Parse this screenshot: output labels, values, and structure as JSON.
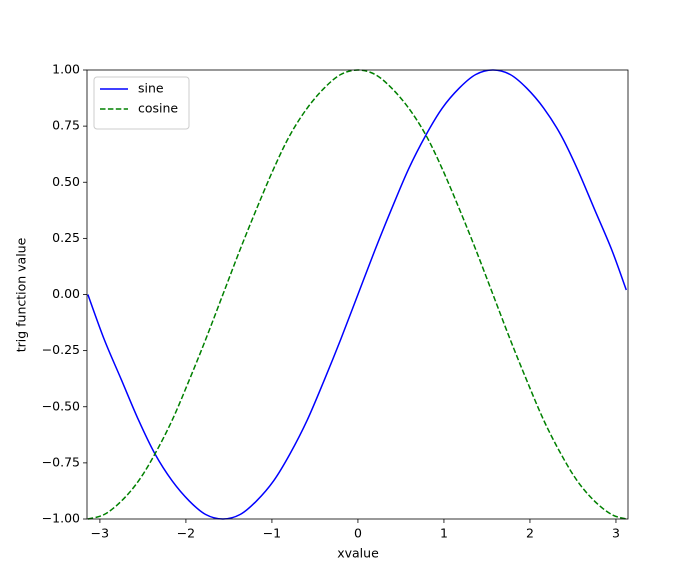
{
  "chart_data": {
    "type": "line",
    "x_label": "xvalue",
    "y_label": "trig function value",
    "x": [
      -3.14,
      -2.95,
      -2.75,
      -2.55,
      -2.36,
      -2.16,
      -1.96,
      -1.77,
      -1.57,
      -1.37,
      -1.18,
      -0.98,
      -0.79,
      -0.59,
      -0.39,
      -0.2,
      0,
      0.2,
      0.39,
      0.59,
      0.79,
      0.98,
      1.18,
      1.37,
      1.57,
      1.77,
      1.96,
      2.16,
      2.36,
      2.55,
      2.75,
      2.95,
      3.12
    ],
    "series": [
      {
        "name": "sine",
        "color": "#0000ff",
        "linestyle": "solid",
        "values": [
          0,
          -0.2,
          -0.38,
          -0.56,
          -0.71,
          -0.83,
          -0.92,
          -0.98,
          -1,
          -0.98,
          -0.92,
          -0.83,
          -0.71,
          -0.56,
          -0.38,
          -0.2,
          0,
          0.2,
          0.38,
          0.56,
          0.71,
          0.83,
          0.92,
          0.98,
          1,
          0.98,
          0.92,
          0.83,
          0.71,
          0.56,
          0.38,
          0.2,
          0.02
        ]
      },
      {
        "name": "cosine",
        "color": "#008000",
        "linestyle": "dashed",
        "values": [
          -1,
          -0.98,
          -0.92,
          -0.83,
          -0.71,
          -0.56,
          -0.38,
          -0.2,
          0,
          0.2,
          0.38,
          0.56,
          0.71,
          0.83,
          0.92,
          0.98,
          1,
          0.98,
          0.92,
          0.83,
          0.71,
          0.56,
          0.38,
          0.2,
          0,
          -0.2,
          -0.38,
          -0.56,
          -0.71,
          -0.83,
          -0.92,
          -0.98,
          -1
        ]
      }
    ],
    "xlim": [
      -3.15,
      3.14
    ],
    "ylim": [
      -1,
      1
    ],
    "xticks": [
      {
        "value": -3,
        "label": "−3"
      },
      {
        "value": -2,
        "label": "−2"
      },
      {
        "value": -1,
        "label": "−1"
      },
      0,
      1,
      2,
      3
    ],
    "yticks": [
      {
        "value": -1,
        "label": "−1.00"
      },
      {
        "value": -0.75,
        "label": "−0.75"
      },
      {
        "value": -0.5,
        "label": "−0.50"
      },
      {
        "value": -0.25,
        "label": "−0.25"
      },
      {
        "value": 0,
        "label": "0.00"
      },
      0.25,
      {
        "value": 0.5,
        "label": "0.50"
      },
      0.75,
      {
        "value": 1,
        "label": "1.00"
      }
    ],
    "legend": "upper left",
    "grid": false
  }
}
